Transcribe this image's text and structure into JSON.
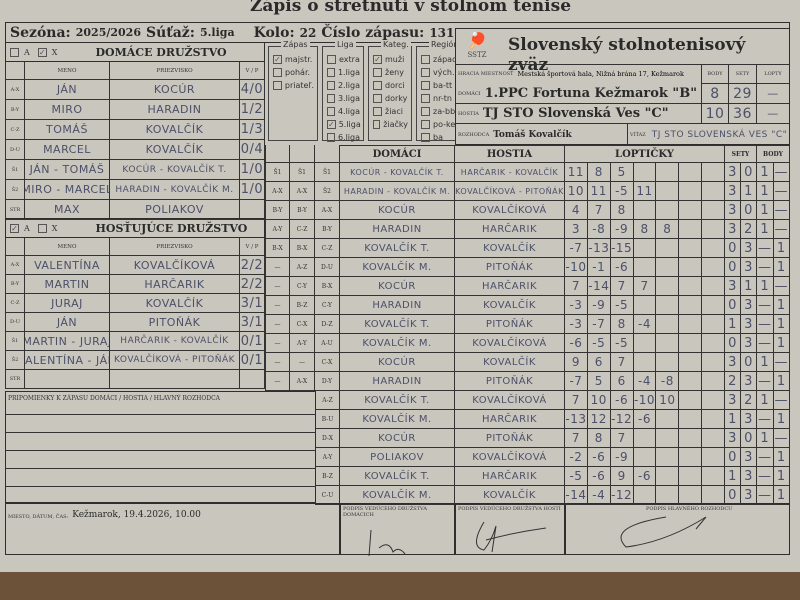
{
  "title": "Zápis o stretnutí v stolnom tenise",
  "season_label": "Sezóna:",
  "season": "2025/2026",
  "competition_label": "Súťaž:",
  "competition": "5.liga",
  "round_label": "Kolo:",
  "round": "22",
  "match_no_label": "Číslo zápasu:",
  "match_no": "131",
  "home_team": {
    "checkbox_a": "A",
    "checkbox_x": "X",
    "checked": "X",
    "title": "DOMÁCE DRUŽSTVO",
    "col_name": "MENO",
    "col_surname": "PRIEZVISKO",
    "col_vp": "V / P",
    "players": [
      {
        "code": "A-X",
        "name": "JÁN",
        "surname": "KOCÚR",
        "vp": "4/0"
      },
      {
        "code": "B-Y",
        "name": "MIRO",
        "surname": "HARADIN",
        "vp": "1/2"
      },
      {
        "code": "C-Z",
        "name": "TOMÁŠ",
        "surname": "KOVALČÍK",
        "vp": "1/3"
      },
      {
        "code": "D-U",
        "name": "MARCEL",
        "surname": "KOVALČÍK",
        "vp": "0/4"
      },
      {
        "code": "Š1",
        "name": "JÁN - TOMÁŠ",
        "surname": "KOCÚR - KOVALČÍK T.",
        "vp": "1/0"
      },
      {
        "code": "Š2",
        "name": "MIRO - MARCEL",
        "surname": "HARADIN - KOVALČÍK M.",
        "vp": "1/0"
      },
      {
        "code": "STR",
        "name": "MAX",
        "surname": "POLIAKOV",
        "vp": ""
      }
    ]
  },
  "guest_team": {
    "checkbox_a": "A",
    "checkbox_x": "X",
    "checked": "A",
    "title": "HOSŤUJÚCE DRUŽSTVO",
    "col_name": "MENO",
    "col_surname": "PRIEZVISKO",
    "col_vp": "V / P",
    "players": [
      {
        "code": "A-X",
        "name": "VALENTÍNA",
        "surname": "KOVALČÍKOVÁ",
        "vp": "2/2"
      },
      {
        "code": "B-Y",
        "name": "MARTIN",
        "surname": "HARČARIK",
        "vp": "2/2"
      },
      {
        "code": "C-Z",
        "name": "JURAJ",
        "surname": "KOVALČÍK",
        "vp": "3/1"
      },
      {
        "code": "D-U",
        "name": "JÁN",
        "surname": "PITOŇÁK",
        "vp": "3/1"
      },
      {
        "code": "Š1",
        "name": "MARTIN - JURAJ",
        "surname": "HARČARIK - KOVALČÍK",
        "vp": "0/1"
      },
      {
        "code": "Š2",
        "name": "VALENTÍNA - JÁN",
        "surname": "KOVALČÍKOVÁ - PITOŇÁK",
        "vp": "0/1"
      },
      {
        "code": "STR",
        "name": "",
        "surname": "",
        "vp": ""
      }
    ]
  },
  "options": {
    "zapas": {
      "title": "Zápas",
      "items": [
        {
          "label": "majstr.",
          "checked": true
        },
        {
          "label": "pohár.",
          "checked": false
        },
        {
          "label": "priateľ.",
          "checked": false
        }
      ]
    },
    "liga": {
      "title": "Liga",
      "items": [
        {
          "label": "extra",
          "checked": false
        },
        {
          "label": "1.liga",
          "checked": false
        },
        {
          "label": "2.liga",
          "checked": false
        },
        {
          "label": "3.liga",
          "checked": false
        },
        {
          "label": "4.liga",
          "checked": false
        },
        {
          "label": "5.liga",
          "checked": true
        },
        {
          "label": "6.liga",
          "checked": false
        }
      ]
    },
    "kateg": {
      "title": "Kateg.",
      "items": [
        {
          "label": "muži",
          "checked": true
        },
        {
          "label": "ženy",
          "checked": false
        },
        {
          "label": "dorci",
          "checked": false
        },
        {
          "label": "dorky",
          "checked": false
        },
        {
          "label": "žiaci",
          "checked": false
        },
        {
          "label": "žiačky",
          "checked": false
        }
      ]
    },
    "region": {
      "title": "Región",
      "items": [
        {
          "label": "západ",
          "checked": false
        },
        {
          "label": "vých.",
          "checked": false
        },
        {
          "label": "ba-tt",
          "checked": false
        },
        {
          "label": "nr-tn",
          "checked": false
        },
        {
          "label": "za-bb",
          "checked": false
        },
        {
          "label": "po-ke",
          "checked": false
        },
        {
          "label": "ba",
          "checked": false
        }
      ],
      "items2": [
        {
          "label": "tt",
          "checked": false
        },
        {
          "label": "nr",
          "checked": false
        },
        {
          "label": "tn",
          "checked": false
        },
        {
          "label": "za",
          "checked": false
        },
        {
          "label": "bb",
          "checked": false
        },
        {
          "label": "po",
          "checked": true
        },
        {
          "label": "ke",
          "checked": false
        }
      ]
    }
  },
  "federation": {
    "logo_text": "SSTZ",
    "name": "Slovenský stolnotenisový zväz"
  },
  "venue_label": "HRACIA MIESTNOSŤ",
  "venue": "Mestská športová hala, Nižná brána 17, Kežmarok",
  "col_body": "BODY",
  "col_sety": "SETY",
  "col_lopty": "LOPTY",
  "home_label": "DOMÁCI",
  "home_club": "1.PPC Fortuna Kežmarok \"B\"",
  "home_body": "8",
  "home_sety": "29",
  "home_lopty": "—",
  "guest_label": "HOSTIA",
  "guest_club": "TJ STO Slovenská Ves \"C\"",
  "guest_body": "10",
  "guest_sety": "36",
  "guest_lopty": "—",
  "referee_label": "ROZHODCA",
  "referee": "Tomáš Kovalčík",
  "winner_label": "VÍŤAZ",
  "winner": "TJ STO SLOVENSKÁ VES \"C\"",
  "grid": {
    "col_home": "DOMÁCI",
    "col_guest": "HOSTIA",
    "col_balls": "LOPTIČKY",
    "col_sets": "SETY",
    "col_points": "BODY",
    "order1": [
      "Š1",
      "A-X",
      "B-Y",
      "A-Y",
      "B-X",
      "—",
      "—",
      "—",
      "—",
      "—",
      "—",
      "—"
    ],
    "order2": [
      "Š1",
      "A-X",
      "B-Y",
      "C-Z",
      "B-X",
      "A-Z",
      "C-Y",
      "B-Z",
      "C-X",
      "A-Y",
      "—",
      "A-X"
    ],
    "matches": [
      {
        "code": "Š1",
        "home": "KOCÚR - KOVALČÍK T.",
        "guest": "HARČARIK - KOVALČÍK",
        "balls": [
          "11",
          "8",
          "5",
          "",
          "",
          "",
          ""
        ],
        "sets": [
          "3",
          "0"
        ],
        "points": [
          "1",
          "—"
        ]
      },
      {
        "code": "Š2",
        "home": "HARADIN - KOVALČÍK M.",
        "guest": "KOVALČÍKOVÁ - PITOŇÁK",
        "balls": [
          "10",
          "11",
          "-5",
          "11",
          "",
          "",
          ""
        ],
        "sets": [
          "3",
          "1"
        ],
        "points": [
          "1",
          "—"
        ]
      },
      {
        "code": "A-X",
        "home": "KOCÚR",
        "guest": "KOVALČÍKOVÁ",
        "balls": [
          "4",
          "7",
          "8",
          "",
          "",
          "",
          ""
        ],
        "sets": [
          "3",
          "0"
        ],
        "points": [
          "1",
          "—"
        ]
      },
      {
        "code": "B-Y",
        "home": "HARADIN",
        "guest": "HARČARIK",
        "balls": [
          "3",
          "-8",
          "-9",
          "8",
          "8",
          "",
          ""
        ],
        "sets": [
          "3",
          "2"
        ],
        "points": [
          "1",
          "—"
        ]
      },
      {
        "code": "C-Z",
        "home": "KOVALČÍK T.",
        "guest": "KOVALČÍK",
        "balls": [
          "-7",
          "-13",
          "-15",
          "",
          "",
          "",
          ""
        ],
        "sets": [
          "0",
          "3"
        ],
        "points": [
          "—",
          "1"
        ]
      },
      {
        "code": "D-U",
        "home": "KOVALČÍK M.",
        "guest": "PITOŇÁK",
        "balls": [
          "-10",
          "-1",
          "-6",
          "",
          "",
          "",
          ""
        ],
        "sets": [
          "0",
          "3"
        ],
        "points": [
          "—",
          "1"
        ]
      },
      {
        "code": "B-X",
        "home": "KOCÚR",
        "guest": "HARČARIK",
        "balls": [
          "7",
          "-14",
          "7",
          "7",
          "",
          "",
          ""
        ],
        "sets": [
          "3",
          "1"
        ],
        "points": [
          "1",
          "—"
        ]
      },
      {
        "code": "C-Y",
        "home": "HARADIN",
        "guest": "KOVALČÍK",
        "balls": [
          "-3",
          "-9",
          "-5",
          "",
          "",
          "",
          ""
        ],
        "sets": [
          "0",
          "3"
        ],
        "points": [
          "—",
          "1"
        ]
      },
      {
        "code": "D-Z",
        "home": "KOVALČÍK T.",
        "guest": "PITOŇÁK",
        "balls": [
          "-3",
          "-7",
          "8",
          "-4",
          "",
          "",
          ""
        ],
        "sets": [
          "1",
          "3"
        ],
        "points": [
          "—",
          "1"
        ]
      },
      {
        "code": "A-U",
        "home": "KOVALČÍK M.",
        "guest": "KOVALČÍKOVÁ",
        "balls": [
          "-6",
          "-5",
          "-5",
          "",
          "",
          "",
          ""
        ],
        "sets": [
          "0",
          "3"
        ],
        "points": [
          "—",
          "1"
        ]
      },
      {
        "code": "C-X",
        "home": "KOCÚR",
        "guest": "KOVALČÍK",
        "balls": [
          "9",
          "6",
          "7",
          "",
          "",
          "",
          ""
        ],
        "sets": [
          "3",
          "0"
        ],
        "points": [
          "1",
          "—"
        ]
      },
      {
        "code": "D-Y",
        "home": "HARADIN",
        "guest": "PITOŇÁK",
        "balls": [
          "-7",
          "5",
          "6",
          "-4",
          "-8",
          "",
          ""
        ],
        "sets": [
          "2",
          "3"
        ],
        "points": [
          "—",
          "1"
        ]
      },
      {
        "code": "A-Z",
        "home": "KOVALČÍK T.",
        "guest": "KOVALČÍKOVÁ",
        "balls": [
          "7",
          "10",
          "-6",
          "-10",
          "10",
          "",
          ""
        ],
        "sets": [
          "3",
          "2"
        ],
        "points": [
          "1",
          "—"
        ]
      },
      {
        "code": "B-U",
        "home": "KOVALČÍK M.",
        "guest": "HARČARIK",
        "balls": [
          "-13",
          "12",
          "-12",
          "-6",
          "",
          "",
          ""
        ],
        "sets": [
          "1",
          "3"
        ],
        "points": [
          "—",
          "1"
        ]
      },
      {
        "code": "D-X",
        "home": "KOCÚR",
        "guest": "PITOŇÁK",
        "balls": [
          "7",
          "8",
          "7",
          "",
          "",
          "",
          ""
        ],
        "sets": [
          "3",
          "0"
        ],
        "points": [
          "1",
          "—"
        ]
      },
      {
        "code": "A-Y",
        "home": "POLIAKOV",
        "guest": "KOVALČÍKOVÁ",
        "balls": [
          "-2",
          "-6",
          "-9",
          "",
          "",
          "",
          ""
        ],
        "sets": [
          "0",
          "3"
        ],
        "points": [
          "—",
          "1"
        ]
      },
      {
        "code": "B-Z",
        "home": "KOVALČÍK T.",
        "guest": "HARČARIK",
        "balls": [
          "-5",
          "-6",
          "9",
          "-6",
          "",
          "",
          ""
        ],
        "sets": [
          "1",
          "3"
        ],
        "points": [
          "—",
          "1"
        ]
      },
      {
        "code": "C-U",
        "home": "KOVALČÍK M.",
        "guest": "KOVALČÍK",
        "balls": [
          "-14",
          "-4",
          "-12",
          "",
          "",
          "",
          ""
        ],
        "sets": [
          "0",
          "3"
        ],
        "points": [
          "—",
          "1"
        ]
      }
    ]
  },
  "remarks_label": "PRIPOMIENKY K ZÁPASU DOMÁCI / HOSTIA / HLAVNÝ ROZHODCA",
  "place_label": "MIESTO, DÁTUM, ČAS:",
  "place": "Kežmarok, 19.4.2026, 10.00",
  "sig_home_label": "PODPIS VEDÚCEHO DRUŽSTVA DOMÁCICH",
  "sig_guest_label": "PODPIS VEDÚCEHO DRUŽSTVA HOSTÍ",
  "sig_ref_label": "PODPIS HLAVNÉHO ROZHODCU"
}
